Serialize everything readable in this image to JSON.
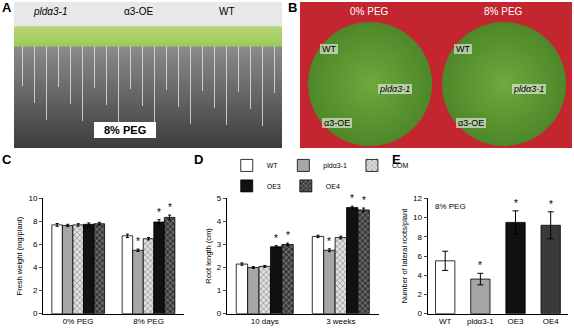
{
  "panels": [
    {
      "letter": "A",
      "labels": [
        "pldα3-1",
        "α3-OE",
        "WT"
      ],
      "caption": "8% PEG"
    },
    {
      "letter": "B",
      "dishes": [
        {
          "title": "0% PEG",
          "labels": [
            "WT",
            "pldα3-1",
            "α3-OE"
          ]
        },
        {
          "title": "8% PEG",
          "labels": [
            "WT",
            "pldα3-1",
            "α3-OE"
          ]
        }
      ]
    }
  ],
  "chart_data": [
    {
      "type": "bar",
      "title": "C",
      "y_label": "Fresh weight (mg/plant)",
      "categories": [
        "0% PEG",
        "8% PEG"
      ],
      "series": [
        {
          "name": "WT",
          "color": "#ffffff",
          "marker": "solid",
          "values": [
            7.7,
            6.75
          ],
          "errors": [
            0.12,
            0.15
          ],
          "annotations": [
            null,
            null
          ]
        },
        {
          "name": "pldα3-1",
          "color": "#a6a6a6",
          "marker": "solid",
          "values": [
            7.65,
            5.5
          ],
          "errors": [
            0.1,
            0.1
          ],
          "annotations": [
            null,
            "*"
          ]
        },
        {
          "name": "COM",
          "color": "#e0e0e0",
          "marker": "hatched",
          "values": [
            7.7,
            6.5
          ],
          "errors": [
            0.1,
            0.1
          ],
          "annotations": [
            null,
            null
          ]
        },
        {
          "name": "OE3",
          "color": "#111111",
          "marker": "solid",
          "values": [
            7.75,
            7.95
          ],
          "errors": [
            0.12,
            0.2
          ],
          "annotations": [
            null,
            "*"
          ]
        },
        {
          "name": "OE4",
          "color": "#3a3a3a",
          "marker": "hatched",
          "values": [
            7.8,
            8.35
          ],
          "errors": [
            0.12,
            0.2
          ],
          "annotations": [
            null,
            "*"
          ]
        }
      ],
      "ylim": [
        0,
        10
      ],
      "yticks": [
        0,
        2,
        4,
        6,
        8,
        10
      ],
      "grid": false
    },
    {
      "type": "bar",
      "title": "D",
      "y_label": "Root length (cm)",
      "categories": [
        "10 days",
        "3 weeks"
      ],
      "series": [
        {
          "name": "WT",
          "color": "#ffffff",
          "marker": "solid",
          "values": [
            2.15,
            3.35
          ],
          "errors": [
            0.05,
            0.05
          ],
          "annotations": [
            null,
            null
          ]
        },
        {
          "name": "pldα3-1",
          "color": "#a6a6a6",
          "marker": "solid",
          "values": [
            2.0,
            2.75
          ],
          "errors": [
            0.04,
            0.06
          ],
          "annotations": [
            null,
            "*"
          ]
        },
        {
          "name": "COM",
          "color": "#e0e0e0",
          "marker": "hatched",
          "values": [
            2.05,
            3.3
          ],
          "errors": [
            0.04,
            0.06
          ],
          "annotations": [
            null,
            null
          ]
        },
        {
          "name": "OE3",
          "color": "#111111",
          "marker": "solid",
          "values": [
            2.9,
            4.6
          ],
          "errors": [
            0.05,
            0.06
          ],
          "annotations": [
            "*",
            "*"
          ]
        },
        {
          "name": "OE4",
          "color": "#3a3a3a",
          "marker": "hatched",
          "values": [
            3.0,
            4.5
          ],
          "errors": [
            0.06,
            0.08
          ],
          "annotations": [
            "*",
            "*"
          ]
        }
      ],
      "ylim": [
        0,
        5
      ],
      "yticks": [
        0,
        1,
        2,
        3,
        4,
        5
      ],
      "grid": false,
      "legend": "top"
    },
    {
      "type": "bar",
      "title": "E",
      "y_label": "Number of lateral roots/plant",
      "label": "8% PEG",
      "categories": [
        "WT",
        "pldα3-1",
        "OE3",
        "OE4"
      ],
      "values": [
        5.5,
        3.6,
        9.5,
        9.2
      ],
      "errors": [
        1.0,
        0.6,
        1.2,
        1.4
      ],
      "annotations": [
        null,
        "*",
        "*",
        "*"
      ],
      "colors": [
        "#ffffff",
        "#a6a6a6",
        "#111111",
        "#3a3a3a"
      ],
      "ylim": [
        0,
        12
      ],
      "yticks": [
        0,
        2,
        4,
        6,
        8,
        10,
        12
      ],
      "grid": false
    }
  ]
}
